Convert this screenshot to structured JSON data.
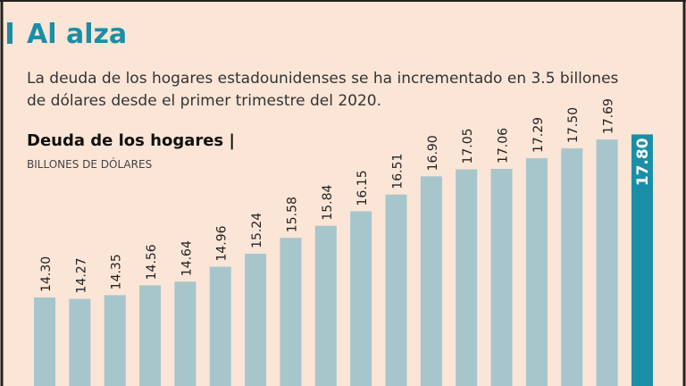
{
  "chart_data": {
    "type": "bar",
    "title": "Al alza",
    "subtitle": [
      "La deuda de los hogares estadounidenses se ha incrementado en 3.5 billones",
      "de dólares desde el primer trimestre del 2020."
    ],
    "chart_title": "Deuda de los hogares |",
    "y_label": "BILLONES DE DÓLARES",
    "values": [
      14.3,
      14.27,
      14.35,
      14.56,
      14.64,
      14.96,
      15.24,
      15.58,
      15.84,
      16.15,
      16.51,
      16.9,
      17.05,
      17.06,
      17.29,
      17.5,
      17.69,
      17.8
    ],
    "value_labels": [
      "14.30",
      "14.27",
      "14.35",
      "14.56",
      "14.64",
      "14.96",
      "15.24",
      "15.58",
      "15.84",
      "16.15",
      "16.51",
      "16.90",
      "17.05",
      "17.06",
      "17.29",
      "17.50",
      "17.69",
      "17.80"
    ],
    "colors": [
      "#a6c6cc",
      "#a6c6cc",
      "#a6c6cc",
      "#a6c6cc",
      "#a6c6cc",
      "#a6c6cc",
      "#a6c6cc",
      "#a6c6cc",
      "#a6c6cc",
      "#a6c6cc",
      "#a6c6cc",
      "#a6c6cc",
      "#a6c6cc",
      "#a6c6cc",
      "#a6c6cc",
      "#a6c6cc",
      "#a6c6cc",
      "#1a8ea6"
    ],
    "ylim": [
      12.4,
      18
    ]
  }
}
